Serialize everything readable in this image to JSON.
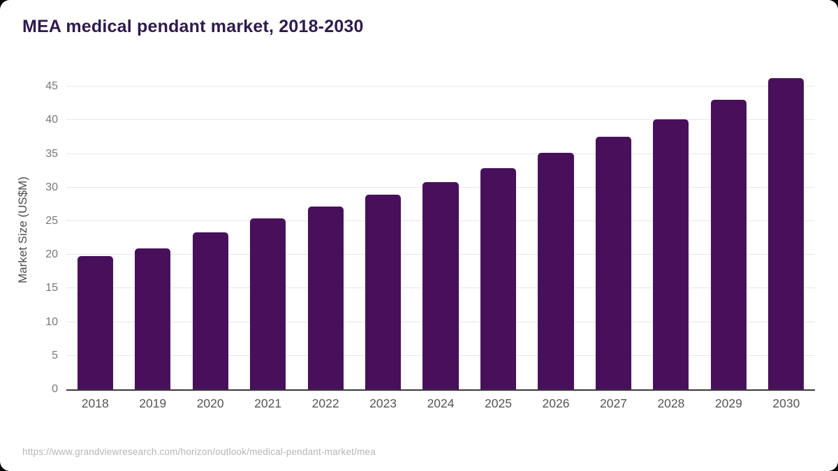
{
  "page": {
    "title": "MEA medical pendant market, 2018-2030",
    "source_url": "https://www.grandviewresearch.com/horizon/outlook/medical-pendant-market/mea"
  },
  "colors": {
    "card_bg": "#ffffff",
    "outside_bg": "#000000",
    "title_color": "#2e1a4d",
    "bar_color": "#48105a",
    "grid_color": "#e7e7e7",
    "baseline_color": "#383838",
    "tick_color": "#787878",
    "xtick_color": "#555555",
    "axis_title_color": "#4d4d4d",
    "url_color": "#b5b5b5"
  },
  "chart_data": {
    "type": "bar",
    "title": "MEA medical pendant market, 2018-2030",
    "categories": [
      "2018",
      "2019",
      "2020",
      "2021",
      "2022",
      "2023",
      "2024",
      "2025",
      "2026",
      "2027",
      "2028",
      "2029",
      "2030"
    ],
    "values": [
      19.8,
      21.0,
      23.3,
      25.4,
      27.2,
      28.9,
      30.8,
      32.9,
      35.2,
      37.5,
      40.1,
      43.0,
      46.3
    ],
    "xlabel": "",
    "ylabel": "Market Size (US$M)",
    "ylim": [
      0,
      47.5
    ],
    "yticks": [
      0,
      5,
      10,
      15,
      20,
      25,
      30,
      35,
      40,
      45
    ],
    "grid": true,
    "legend_position": "none",
    "bar_color": "#48105a"
  }
}
